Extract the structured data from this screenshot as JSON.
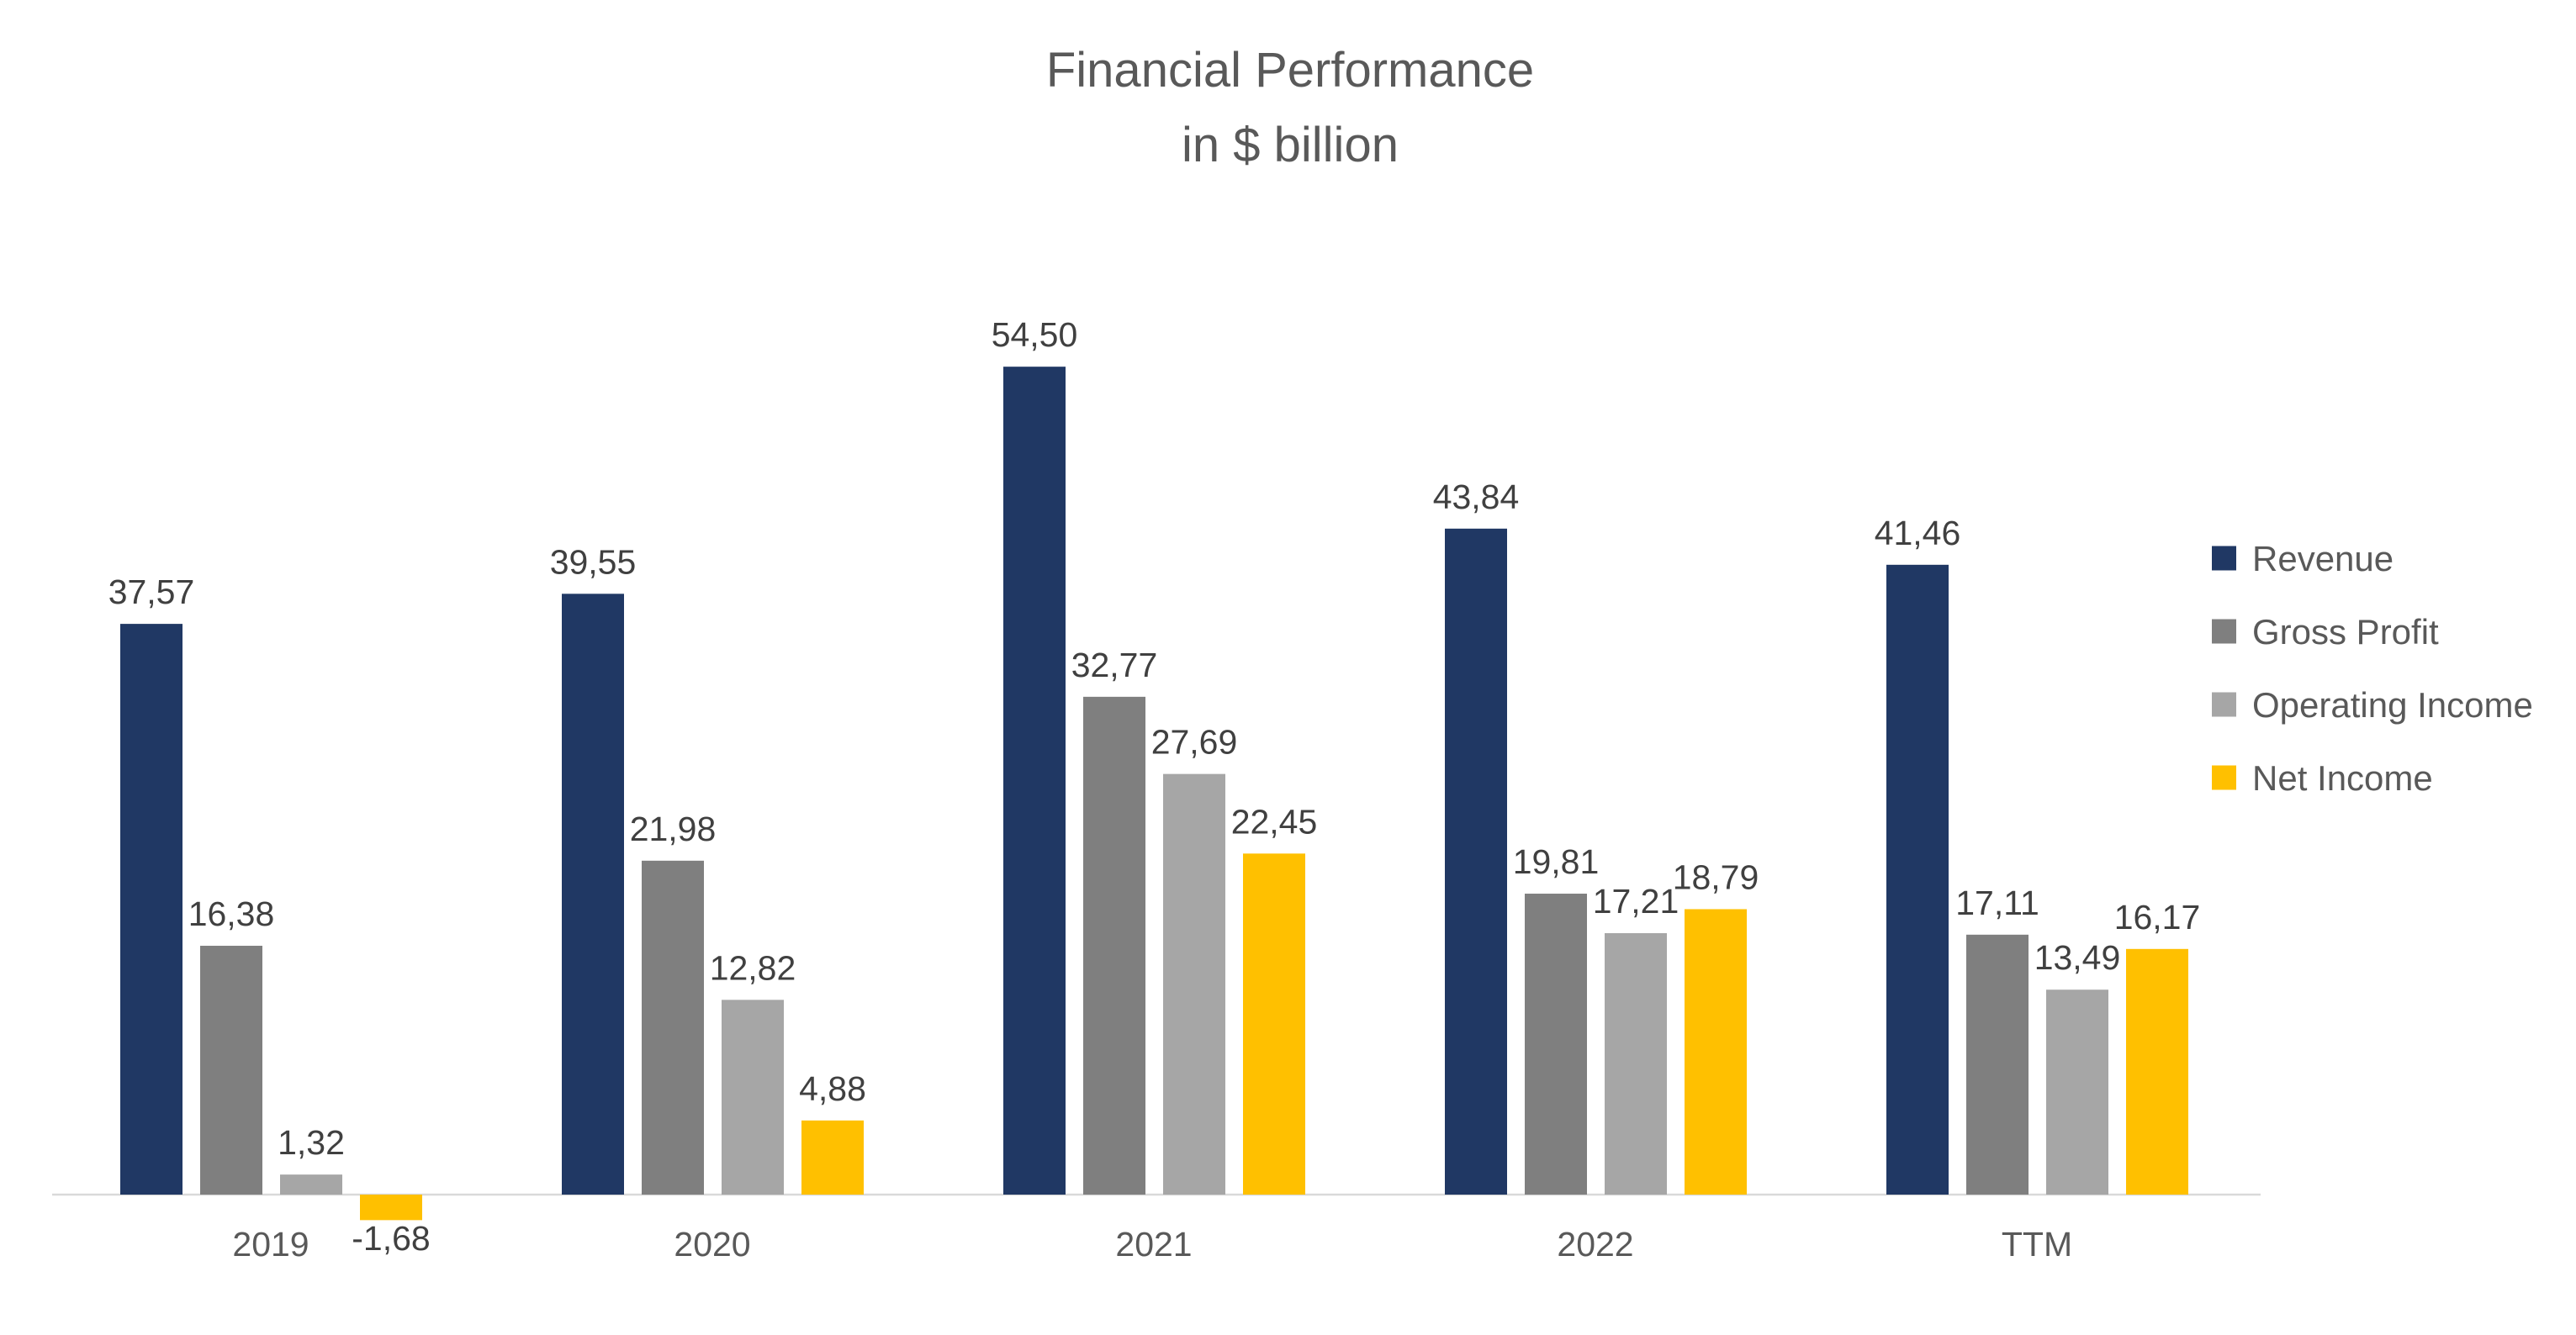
{
  "chart_data": {
    "type": "bar",
    "title": "Financial Performance",
    "subtitle": "in $ billion",
    "categories": [
      "2019",
      "2020",
      "2021",
      "2022",
      "TTM"
    ],
    "series": [
      {
        "name": "Revenue",
        "color": "#203864",
        "values": [
          37.57,
          39.55,
          54.5,
          43.84,
          41.46
        ],
        "labels": [
          "37,57",
          "39,55",
          "54,50",
          "43,84",
          "41,46"
        ]
      },
      {
        "name": "Gross Profit",
        "color": "#7F7F7F",
        "values": [
          16.38,
          21.98,
          32.77,
          19.81,
          17.11
        ],
        "labels": [
          "16,38",
          "21,98",
          "32,77",
          "19,81",
          "17,11"
        ]
      },
      {
        "name": "Operating Income",
        "color": "#A6A6A6",
        "values": [
          1.32,
          12.82,
          27.69,
          17.21,
          13.49
        ],
        "labels": [
          "1,32",
          "12,82",
          "27,69",
          "17,21",
          "13,49"
        ]
      },
      {
        "name": "Net Income",
        "color": "#FFC000",
        "values": [
          -1.68,
          4.88,
          22.45,
          18.79,
          16.17
        ],
        "labels": [
          "-1,68",
          "4,88",
          "22,45",
          "18,79",
          "16,17"
        ]
      }
    ],
    "legend_position": "right",
    "grid": false,
    "axis_line_color": "#D9D9D9"
  }
}
